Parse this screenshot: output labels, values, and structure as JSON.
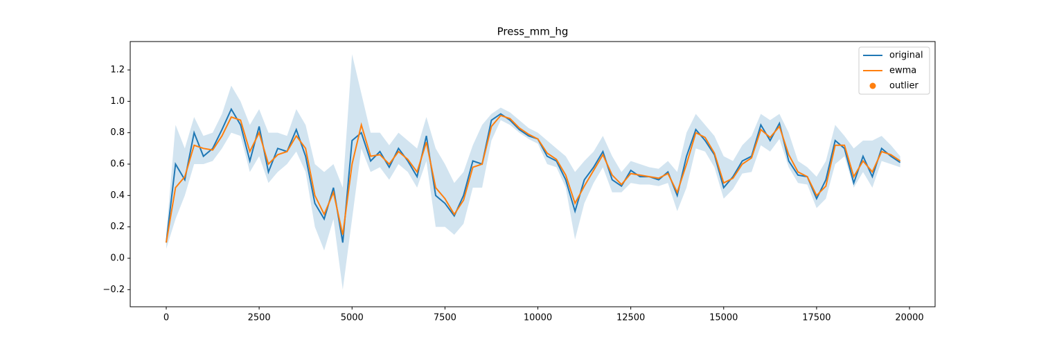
{
  "chart_data": {
    "type": "line",
    "title": "Press_mm_hg",
    "x": [
      0,
      250,
      500,
      750,
      1000,
      1250,
      1500,
      1750,
      2000,
      2250,
      2500,
      2750,
      3000,
      3250,
      3500,
      3750,
      4000,
      4250,
      4500,
      4750,
      5000,
      5250,
      5500,
      5750,
      6000,
      6250,
      6500,
      6750,
      7000,
      7250,
      7500,
      7750,
      8000,
      8250,
      8500,
      8750,
      9000,
      9250,
      9500,
      9750,
      10000,
      10250,
      10500,
      10750,
      11000,
      11250,
      11500,
      11750,
      12000,
      12250,
      12500,
      12750,
      13000,
      13250,
      13500,
      13750,
      14000,
      14250,
      14500,
      14750,
      15000,
      15250,
      15500,
      15750,
      16000,
      16250,
      16500,
      16750,
      17000,
      17250,
      17500,
      17750,
      18000,
      18250,
      18500,
      18750,
      19000,
      19250,
      19500,
      19750
    ],
    "series": [
      {
        "name": "original",
        "color": "#1f77b4",
        "values": [
          0.1,
          0.6,
          0.5,
          0.8,
          0.65,
          0.7,
          0.82,
          0.95,
          0.85,
          0.62,
          0.84,
          0.55,
          0.7,
          0.68,
          0.82,
          0.65,
          0.35,
          0.25,
          0.45,
          0.1,
          0.75,
          0.8,
          0.62,
          0.68,
          0.58,
          0.7,
          0.62,
          0.52,
          0.78,
          0.4,
          0.35,
          0.27,
          0.4,
          0.62,
          0.6,
          0.88,
          0.92,
          0.88,
          0.82,
          0.78,
          0.76,
          0.65,
          0.62,
          0.5,
          0.3,
          0.5,
          0.58,
          0.68,
          0.5,
          0.46,
          0.56,
          0.52,
          0.52,
          0.5,
          0.55,
          0.4,
          0.65,
          0.82,
          0.75,
          0.66,
          0.45,
          0.52,
          0.62,
          0.65,
          0.85,
          0.75,
          0.86,
          0.62,
          0.53,
          0.52,
          0.38,
          0.5,
          0.75,
          0.7,
          0.48,
          0.65,
          0.52,
          0.7,
          0.65,
          0.61
        ]
      },
      {
        "name": "ewma",
        "color": "#ff7f0e",
        "values": [
          0.1,
          0.45,
          0.52,
          0.72,
          0.7,
          0.69,
          0.78,
          0.9,
          0.88,
          0.68,
          0.8,
          0.6,
          0.66,
          0.68,
          0.78,
          0.7,
          0.4,
          0.28,
          0.42,
          0.15,
          0.6,
          0.85,
          0.65,
          0.66,
          0.6,
          0.68,
          0.63,
          0.55,
          0.74,
          0.45,
          0.38,
          0.28,
          0.37,
          0.58,
          0.6,
          0.84,
          0.91,
          0.89,
          0.83,
          0.79,
          0.76,
          0.67,
          0.63,
          0.53,
          0.35,
          0.46,
          0.56,
          0.66,
          0.53,
          0.47,
          0.54,
          0.53,
          0.52,
          0.51,
          0.54,
          0.42,
          0.6,
          0.8,
          0.77,
          0.67,
          0.48,
          0.51,
          0.6,
          0.64,
          0.82,
          0.77,
          0.84,
          0.66,
          0.55,
          0.52,
          0.4,
          0.46,
          0.72,
          0.72,
          0.52,
          0.62,
          0.55,
          0.68,
          0.66,
          0.62
        ]
      }
    ],
    "band": {
      "color": "#1f77b4",
      "upper": [
        0.15,
        0.85,
        0.7,
        0.9,
        0.78,
        0.8,
        0.92,
        1.1,
        1.0,
        0.85,
        0.95,
        0.8,
        0.8,
        0.78,
        0.95,
        0.85,
        0.6,
        0.55,
        0.6,
        0.45,
        1.3,
        1.05,
        0.8,
        0.8,
        0.72,
        0.8,
        0.75,
        0.7,
        0.9,
        0.7,
        0.6,
        0.48,
        0.55,
        0.72,
        0.85,
        0.92,
        0.96,
        0.93,
        0.88,
        0.83,
        0.8,
        0.75,
        0.7,
        0.65,
        0.55,
        0.62,
        0.68,
        0.78,
        0.65,
        0.55,
        0.62,
        0.6,
        0.58,
        0.57,
        0.62,
        0.55,
        0.8,
        0.92,
        0.85,
        0.78,
        0.65,
        0.62,
        0.72,
        0.78,
        0.92,
        0.88,
        0.92,
        0.8,
        0.62,
        0.58,
        0.52,
        0.62,
        0.85,
        0.78,
        0.7,
        0.75,
        0.75,
        0.78,
        0.72,
        0.65
      ],
      "lower": [
        0.06,
        0.25,
        0.4,
        0.6,
        0.6,
        0.62,
        0.7,
        0.8,
        0.78,
        0.55,
        0.65,
        0.48,
        0.55,
        0.6,
        0.68,
        0.55,
        0.2,
        0.05,
        0.25,
        -0.2,
        0.25,
        0.7,
        0.55,
        0.58,
        0.5,
        0.6,
        0.55,
        0.45,
        0.62,
        0.2,
        0.2,
        0.15,
        0.22,
        0.45,
        0.45,
        0.75,
        0.88,
        0.85,
        0.8,
        0.76,
        0.73,
        0.6,
        0.58,
        0.45,
        0.12,
        0.35,
        0.48,
        0.58,
        0.42,
        0.42,
        0.48,
        0.47,
        0.47,
        0.46,
        0.48,
        0.3,
        0.45,
        0.7,
        0.68,
        0.58,
        0.38,
        0.44,
        0.54,
        0.55,
        0.72,
        0.68,
        0.76,
        0.58,
        0.48,
        0.47,
        0.32,
        0.38,
        0.6,
        0.65,
        0.45,
        0.55,
        0.45,
        0.62,
        0.6,
        0.58
      ]
    },
    "outliers": {
      "name": "outlier",
      "color": "#ff7f0e",
      "x": [],
      "values": []
    },
    "xlim": [
      -969,
      20689
    ],
    "ylim": [
      -0.309,
      1.381
    ],
    "xticks": [
      0,
      2500,
      5000,
      7500,
      10000,
      12500,
      15000,
      17500,
      20000
    ],
    "yticks": [
      {
        "value": -0.2,
        "label": "−0.2"
      },
      {
        "value": 0,
        "label": "0.0"
      },
      0.2,
      0.4,
      0.6,
      0.8,
      {
        "value": 1,
        "label": "1.0"
      },
      1.2
    ],
    "legend": "upper right"
  }
}
